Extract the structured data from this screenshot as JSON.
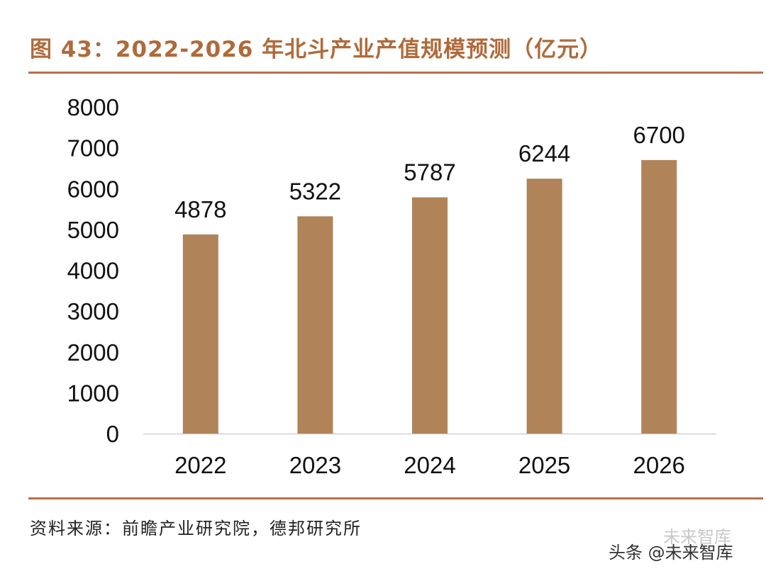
{
  "header": {
    "title": "图 43：2022-2026 年北斗产业产值规模预测（亿元）"
  },
  "footer": {
    "source": "资料来源：前瞻产业研究院，德邦研究所",
    "watermark": "头条 @未来智库",
    "watermark_faint": "未来智库"
  },
  "colors": {
    "bar": "#b08458",
    "title": "#b06a3a",
    "rule": "#b8714a",
    "axis": "#d0d0d0"
  },
  "chart_data": {
    "type": "bar",
    "title": "图 43：2022-2026 年北斗产业产值规模预测（亿元）",
    "categories": [
      "2022",
      "2023",
      "2024",
      "2025",
      "2026"
    ],
    "values": [
      4878,
      5322,
      5787,
      6244,
      6700
    ],
    "data_labels": [
      "4878",
      "5322",
      "5787",
      "6244",
      "6700"
    ],
    "xlabel": "",
    "ylabel": "",
    "ylim": [
      0,
      8000
    ],
    "yticks": [
      "0",
      "1000",
      "2000",
      "3000",
      "4000",
      "5000",
      "6000",
      "7000",
      "8000"
    ],
    "grid": false,
    "legend": "none"
  }
}
